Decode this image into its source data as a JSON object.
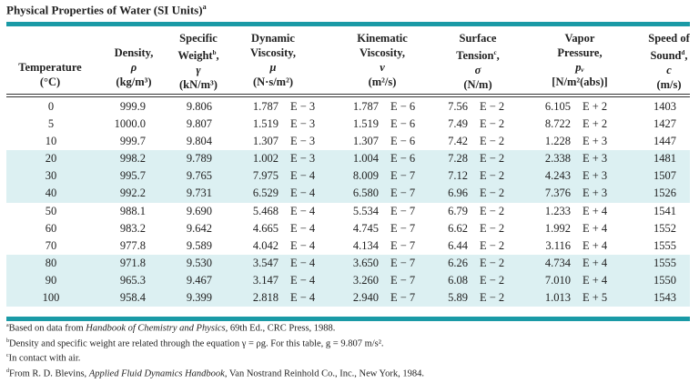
{
  "title": {
    "text": "Physical Properties of Water (SI Units)",
    "note": "a"
  },
  "accent_color": "#1a9aa6",
  "shade_color": "#dcf0f2",
  "headers": [
    {
      "lines": [
        "Temperature",
        "(°C)"
      ]
    },
    {
      "lines": [
        "Density,",
        "ρ",
        "(kg/m³)"
      ]
    },
    {
      "lines": [
        "Specific",
        "Weight",
        "γ",
        "(kN/m³)"
      ],
      "note": "b"
    },
    {
      "lines": [
        "Dynamic",
        "Viscosity,",
        "μ",
        "(N·s/m²)"
      ]
    },
    {
      "lines": [
        "Kinematic",
        "Viscosity,",
        "ν",
        "(m²/s)"
      ]
    },
    {
      "lines": [
        "Surface",
        "Tension",
        "σ",
        "(N/m)"
      ],
      "note": "c"
    },
    {
      "lines": [
        "Vapor",
        "Pressure,",
        "pᵥ",
        "[N/m²(abs)]"
      ]
    },
    {
      "lines": [
        "Speed of",
        "Sound",
        "c",
        "(m/s)"
      ],
      "note": "d"
    }
  ],
  "rows": [
    [
      "0",
      "999.9",
      "9.806",
      "1.787",
      "E − 3",
      "1.787",
      "E − 6",
      "7.56",
      "E − 2",
      "6.105",
      "E + 2",
      "1403"
    ],
    [
      "5",
      "1000.0",
      "9.807",
      "1.519",
      "E − 3",
      "1.519",
      "E − 6",
      "7.49",
      "E − 2",
      "8.722",
      "E + 2",
      "1427"
    ],
    [
      "10",
      "999.7",
      "9.804",
      "1.307",
      "E − 3",
      "1.307",
      "E − 6",
      "7.42",
      "E − 2",
      "1.228",
      "E + 3",
      "1447"
    ],
    [
      "20",
      "998.2",
      "9.789",
      "1.002",
      "E − 3",
      "1.004",
      "E − 6",
      "7.28",
      "E − 2",
      "2.338",
      "E + 3",
      "1481"
    ],
    [
      "30",
      "995.7",
      "9.765",
      "7.975",
      "E − 4",
      "8.009",
      "E − 7",
      "7.12",
      "E − 2",
      "4.243",
      "E + 3",
      "1507"
    ],
    [
      "40",
      "992.2",
      "9.731",
      "6.529",
      "E − 4",
      "6.580",
      "E − 7",
      "6.96",
      "E − 2",
      "7.376",
      "E + 3",
      "1526"
    ],
    [
      "50",
      "988.1",
      "9.690",
      "5.468",
      "E − 4",
      "5.534",
      "E − 7",
      "6.79",
      "E − 2",
      "1.233",
      "E + 4",
      "1541"
    ],
    [
      "60",
      "983.2",
      "9.642",
      "4.665",
      "E − 4",
      "4.745",
      "E − 7",
      "6.62",
      "E − 2",
      "1.992",
      "E + 4",
      "1552"
    ],
    [
      "70",
      "977.8",
      "9.589",
      "4.042",
      "E − 4",
      "4.134",
      "E − 7",
      "6.44",
      "E − 2",
      "3.116",
      "E + 4",
      "1555"
    ],
    [
      "80",
      "971.8",
      "9.530",
      "3.547",
      "E − 4",
      "3.650",
      "E − 7",
      "6.26",
      "E − 2",
      "4.734",
      "E + 4",
      "1555"
    ],
    [
      "90",
      "965.3",
      "9.467",
      "3.147",
      "E − 4",
      "3.260",
      "E − 7",
      "6.08",
      "E − 2",
      "7.010",
      "E + 4",
      "1550"
    ],
    [
      "100",
      "958.4",
      "9.399",
      "2.818",
      "E − 4",
      "2.940",
      "E − 7",
      "5.89",
      "E − 2",
      "1.013",
      "E + 5",
      "1543"
    ]
  ],
  "footnotes": [
    {
      "mark": "a",
      "pre": "Based on data from ",
      "ital": "Handbook of Chemistry and Physics",
      "post": ", 69th Ed., CRC Press, 1988."
    },
    {
      "mark": "b",
      "pre": "Density and specific weight are related through the equation γ = ρg. For this table, g = 9.807 m/s².",
      "ital": "",
      "post": ""
    },
    {
      "mark": "c",
      "pre": "In contact with air.",
      "ital": "",
      "post": ""
    },
    {
      "mark": "d",
      "pre": "From R. D. Blevins, ",
      "ital": "Applied Fluid Dynamics Handbook",
      "post": ", Van Nostrand Reinhold Co., Inc., New York, 1984."
    }
  ]
}
